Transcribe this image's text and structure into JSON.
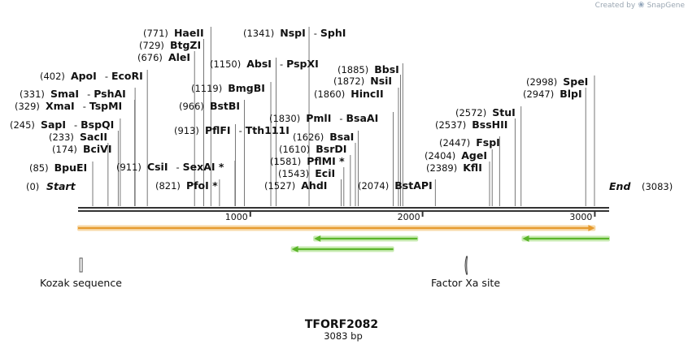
{
  "credit": {
    "prefix": "Created by",
    "logo_icon": "snapgene-swirl-icon",
    "brand": "SnapGene"
  },
  "map": {
    "length": 3083,
    "name": "TFORF2082",
    "size_label": "3083 bp",
    "start": {
      "label": "Start",
      "pos_label": "(0)"
    },
    "end": {
      "label": "End",
      "pos_label": "(3083)"
    },
    "ticks": [
      {
        "value": 1000,
        "label": "1000"
      },
      {
        "value": 2000,
        "label": "2000"
      },
      {
        "value": 3000,
        "label": "3000"
      }
    ],
    "sites": [
      {
        "pos": 85,
        "pos_label": "(85)",
        "names": [
          "BpuEI"
        ]
      },
      {
        "pos": 174,
        "pos_label": "(174)",
        "names": [
          "BciVI"
        ]
      },
      {
        "pos": 233,
        "pos_label": "(233)",
        "names": [
          "SacII"
        ]
      },
      {
        "pos": 245,
        "pos_label": "(245)",
        "names": [
          "SapI",
          "BspQI"
        ]
      },
      {
        "pos": 329,
        "pos_label": "(329)",
        "names": [
          "XmaI",
          "TspMI"
        ]
      },
      {
        "pos": 331,
        "pos_label": "(331)",
        "names": [
          "SmaI",
          "PshAI"
        ]
      },
      {
        "pos": 402,
        "pos_label": "(402)",
        "names": [
          "ApoI",
          "EcoRI"
        ]
      },
      {
        "pos": 676,
        "pos_label": "(676)",
        "names": [
          "AleI"
        ]
      },
      {
        "pos": 729,
        "pos_label": "(729)",
        "names": [
          "BtgZI"
        ]
      },
      {
        "pos": 771,
        "pos_label": "(771)",
        "names": [
          "HaeII"
        ]
      },
      {
        "pos": 821,
        "pos_label": "(821)",
        "names": [
          "PfoI *"
        ]
      },
      {
        "pos": 911,
        "pos_label": "(911)",
        "names": [
          "CsiI",
          "SexAI *"
        ]
      },
      {
        "pos": 913,
        "pos_label": "(913)",
        "names": [
          "PflFI",
          "Tth111I"
        ]
      },
      {
        "pos": 966,
        "pos_label": "(966)",
        "names": [
          "BstBI"
        ]
      },
      {
        "pos": 1119,
        "pos_label": "(1119)",
        "names": [
          "BmgBI"
        ]
      },
      {
        "pos": 1150,
        "pos_label": "(1150)",
        "names": [
          "AbsI",
          "PspXI"
        ]
      },
      {
        "pos": 1341,
        "pos_label": "(1341)",
        "names": [
          "NspI",
          "SphI"
        ]
      },
      {
        "pos": 1527,
        "pos_label": "(1527)",
        "names": [
          "AhdI"
        ]
      },
      {
        "pos": 1543,
        "pos_label": "(1543)",
        "names": [
          "EciI"
        ]
      },
      {
        "pos": 1581,
        "pos_label": "(1581)",
        "names": [
          "PflMI *"
        ]
      },
      {
        "pos": 1610,
        "pos_label": "(1610)",
        "names": [
          "BsrDI"
        ]
      },
      {
        "pos": 1626,
        "pos_label": "(1626)",
        "names": [
          "BsaI"
        ]
      },
      {
        "pos": 1830,
        "pos_label": "(1830)",
        "names": [
          "PmlI",
          "BsaAI"
        ]
      },
      {
        "pos": 1860,
        "pos_label": "(1860)",
        "names": [
          "HincII"
        ]
      },
      {
        "pos": 1872,
        "pos_label": "(1872)",
        "names": [
          "NsiI"
        ]
      },
      {
        "pos": 1885,
        "pos_label": "(1885)",
        "names": [
          "BbsI"
        ]
      },
      {
        "pos": 2074,
        "pos_label": "(2074)",
        "names": [
          "BstAPI"
        ]
      },
      {
        "pos": 2389,
        "pos_label": "(2389)",
        "names": [
          "KflI"
        ]
      },
      {
        "pos": 2404,
        "pos_label": "(2404)",
        "names": [
          "AgeI"
        ]
      },
      {
        "pos": 2447,
        "pos_label": "(2447)",
        "names": [
          "FspI"
        ]
      },
      {
        "pos": 2537,
        "pos_label": "(2537)",
        "names": [
          "BssHII"
        ]
      },
      {
        "pos": 2572,
        "pos_label": "(2572)",
        "names": [
          "StuI"
        ]
      },
      {
        "pos": 2947,
        "pos_label": "(2947)",
        "names": [
          "BlpI"
        ]
      },
      {
        "pos": 2998,
        "pos_label": "(2998)",
        "names": [
          "SpeI"
        ]
      }
    ],
    "features": [
      {
        "type": "orf",
        "start": 0,
        "end": 3000,
        "direction": "forward",
        "color": "#e69a2e"
      },
      {
        "type": "orf",
        "start": 1370,
        "end": 1970,
        "direction": "reverse",
        "color": "#5bb52a"
      },
      {
        "type": "orf",
        "start": 1240,
        "end": 1830,
        "direction": "reverse",
        "color": "#5bb52a"
      },
      {
        "type": "orf",
        "start": 2580,
        "end": 3083,
        "direction": "reverse",
        "color": "#5bb52a"
      }
    ],
    "markers": [
      {
        "label": "Kozak sequence",
        "pos": 10,
        "icon": "kozak-marker-icon"
      },
      {
        "label": "Factor Xa site",
        "pos": 2250,
        "icon": "factor-xa-marker-icon"
      }
    ]
  }
}
